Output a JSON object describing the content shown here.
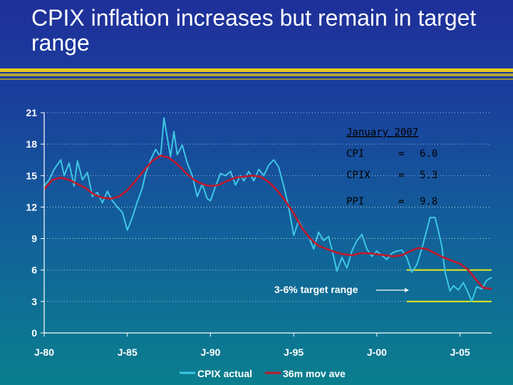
{
  "slide": {
    "title": "CPIX inflation increases but remain in target range"
  },
  "chart_data": {
    "type": "line",
    "x_ticks": [
      "J-80",
      "J-85",
      "J-90",
      "J-95",
      "J-00",
      "J-05"
    ],
    "x_range": [
      1980.0,
      2006.9
    ],
    "ylim": [
      0,
      21
    ],
    "y_ticks": [
      0,
      3,
      6,
      9,
      12,
      15,
      18,
      21
    ],
    "grid": true,
    "target_band": {
      "label": "3-6% target range",
      "low": 3,
      "high": 6,
      "start": 2001.8,
      "end": 2006.9
    },
    "legend": {
      "position": "bottom",
      "entries": [
        {
          "name": "CPIX actual",
          "color": "#3ec6e4"
        },
        {
          "name": "36m mov ave",
          "color": "#c0192a"
        }
      ]
    },
    "info_box": {
      "heading": "January 2007",
      "rows": [
        {
          "label": "CPI",
          "eq": "=",
          "value": "6.0"
        },
        {
          "label": "CPIX",
          "eq": "=",
          "value": "5.3"
        },
        {
          "label": "PPI",
          "eq": "=",
          "value": "9.8"
        }
      ]
    },
    "series": [
      {
        "name": "CPIX actual",
        "color": "#3ec6e4",
        "points": [
          [
            1980.0,
            14.0
          ],
          [
            1980.3,
            14.6
          ],
          [
            1980.6,
            15.6
          ],
          [
            1981.0,
            16.5
          ],
          [
            1981.2,
            15.0
          ],
          [
            1981.5,
            16.2
          ],
          [
            1981.8,
            14.0
          ],
          [
            1982.0,
            16.4
          ],
          [
            1982.3,
            14.6
          ],
          [
            1982.6,
            15.3
          ],
          [
            1982.9,
            13.0
          ],
          [
            1983.2,
            13.4
          ],
          [
            1983.5,
            12.4
          ],
          [
            1983.8,
            13.5
          ],
          [
            1984.1,
            12.6
          ],
          [
            1984.4,
            12.0
          ],
          [
            1984.7,
            11.5
          ],
          [
            1985.0,
            9.8
          ],
          [
            1985.3,
            11.0
          ],
          [
            1985.6,
            12.5
          ],
          [
            1985.9,
            13.8
          ],
          [
            1986.1,
            15.2
          ],
          [
            1986.4,
            16.5
          ],
          [
            1986.7,
            17.5
          ],
          [
            1987.0,
            16.8
          ],
          [
            1987.2,
            20.5
          ],
          [
            1987.4,
            18.6
          ],
          [
            1987.6,
            16.8
          ],
          [
            1987.8,
            19.2
          ],
          [
            1988.0,
            17.0
          ],
          [
            1988.3,
            17.9
          ],
          [
            1988.6,
            16.2
          ],
          [
            1988.9,
            15.0
          ],
          [
            1989.2,
            13.0
          ],
          [
            1989.5,
            14.2
          ],
          [
            1989.8,
            12.8
          ],
          [
            1990.0,
            12.6
          ],
          [
            1990.3,
            14.0
          ],
          [
            1990.6,
            15.2
          ],
          [
            1990.9,
            15.0
          ],
          [
            1991.2,
            15.4
          ],
          [
            1991.5,
            14.1
          ],
          [
            1991.8,
            15.0
          ],
          [
            1992.0,
            14.5
          ],
          [
            1992.3,
            15.4
          ],
          [
            1992.6,
            14.5
          ],
          [
            1992.9,
            15.6
          ],
          [
            1993.2,
            15.0
          ],
          [
            1993.5,
            16.0
          ],
          [
            1993.8,
            16.5
          ],
          [
            1994.1,
            15.8
          ],
          [
            1994.4,
            14.0
          ],
          [
            1994.7,
            12.0
          ],
          [
            1995.0,
            9.3
          ],
          [
            1995.3,
            10.7
          ],
          [
            1995.6,
            9.8
          ],
          [
            1995.9,
            9.2
          ],
          [
            1996.2,
            8.0
          ],
          [
            1996.5,
            9.6
          ],
          [
            1996.8,
            8.8
          ],
          [
            1997.1,
            9.2
          ],
          [
            1997.4,
            7.3
          ],
          [
            1997.6,
            5.9
          ],
          [
            1997.9,
            7.2
          ],
          [
            1998.2,
            6.2
          ],
          [
            1998.5,
            7.8
          ],
          [
            1998.8,
            8.8
          ],
          [
            1999.1,
            9.4
          ],
          [
            1999.4,
            8.0
          ],
          [
            1999.7,
            7.3
          ],
          [
            2000.0,
            7.8
          ],
          [
            2000.3,
            7.4
          ],
          [
            2000.6,
            7.0
          ],
          [
            2000.9,
            7.6
          ],
          [
            2001.2,
            7.8
          ],
          [
            2001.5,
            7.9
          ],
          [
            2001.8,
            7.2
          ],
          [
            2002.1,
            5.8
          ],
          [
            2002.4,
            6.5
          ],
          [
            2002.7,
            8.0
          ],
          [
            2003.0,
            9.8
          ],
          [
            2003.2,
            11.0
          ],
          [
            2003.5,
            11.0
          ],
          [
            2003.7,
            9.7
          ],
          [
            2003.9,
            8.3
          ],
          [
            2004.1,
            5.8
          ],
          [
            2004.4,
            4.0
          ],
          [
            2004.6,
            4.5
          ],
          [
            2004.9,
            4.1
          ],
          [
            2005.2,
            4.8
          ],
          [
            2005.5,
            3.8
          ],
          [
            2005.7,
            3.0
          ],
          [
            2006.0,
            4.4
          ],
          [
            2006.3,
            4.2
          ],
          [
            2006.6,
            5.0
          ],
          [
            2006.9,
            5.3
          ]
        ]
      },
      {
        "name": "36m mov ave",
        "color": "#c0192a",
        "points": [
          [
            1980.0,
            13.7
          ],
          [
            1980.5,
            14.6
          ],
          [
            1981.0,
            14.8
          ],
          [
            1981.5,
            14.6
          ],
          [
            1982.0,
            14.2
          ],
          [
            1982.5,
            13.8
          ],
          [
            1983.0,
            13.2
          ],
          [
            1983.5,
            12.9
          ],
          [
            1984.0,
            12.8
          ],
          [
            1984.5,
            13.0
          ],
          [
            1985.0,
            13.6
          ],
          [
            1985.5,
            14.5
          ],
          [
            1986.0,
            15.5
          ],
          [
            1986.5,
            16.4
          ],
          [
            1987.0,
            16.9
          ],
          [
            1987.5,
            16.7
          ],
          [
            1988.0,
            16.1
          ],
          [
            1988.5,
            15.3
          ],
          [
            1989.0,
            14.6
          ],
          [
            1989.5,
            14.2
          ],
          [
            1990.0,
            14.0
          ],
          [
            1990.5,
            14.1
          ],
          [
            1991.0,
            14.5
          ],
          [
            1991.5,
            14.8
          ],
          [
            1992.0,
            14.9
          ],
          [
            1992.5,
            15.0
          ],
          [
            1993.0,
            14.9
          ],
          [
            1993.5,
            14.4
          ],
          [
            1994.0,
            13.6
          ],
          [
            1994.5,
            12.6
          ],
          [
            1995.0,
            11.4
          ],
          [
            1995.5,
            10.0
          ],
          [
            1996.0,
            9.0
          ],
          [
            1996.5,
            8.3
          ],
          [
            1997.0,
            8.0
          ],
          [
            1997.5,
            7.7
          ],
          [
            1998.0,
            7.5
          ],
          [
            1998.5,
            7.4
          ],
          [
            1999.0,
            7.6
          ],
          [
            1999.5,
            7.6
          ],
          [
            2000.0,
            7.5
          ],
          [
            2000.5,
            7.4
          ],
          [
            2001.0,
            7.3
          ],
          [
            2001.5,
            7.4
          ],
          [
            2002.0,
            7.8
          ],
          [
            2002.5,
            8.1
          ],
          [
            2003.0,
            8.0
          ],
          [
            2003.5,
            7.6
          ],
          [
            2004.0,
            7.2
          ],
          [
            2004.5,
            6.9
          ],
          [
            2005.0,
            6.6
          ],
          [
            2005.5,
            6.0
          ],
          [
            2006.0,
            5.0
          ],
          [
            2006.4,
            4.3
          ],
          [
            2006.9,
            4.2
          ]
        ]
      }
    ]
  }
}
